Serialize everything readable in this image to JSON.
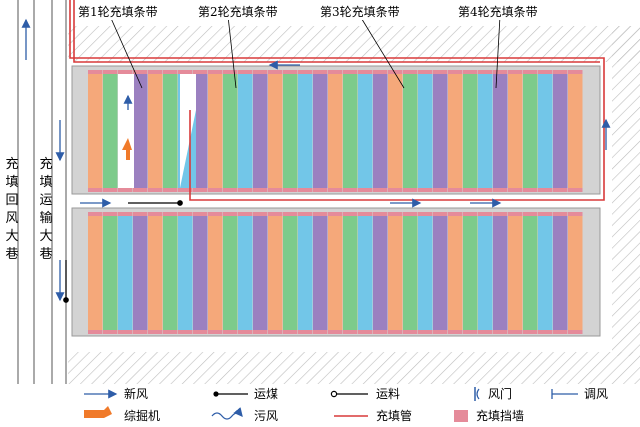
{
  "band_labels": [
    "第1轮充填条带",
    "第2轮充填条带",
    "第3轮充填条带",
    "第4轮充填条带"
  ],
  "roadway_labels": {
    "return_air": [
      "充",
      "填",
      "回",
      "风",
      "大",
      "巷"
    ],
    "transport": [
      "充",
      "填",
      "运",
      "输",
      "大",
      "巷"
    ]
  },
  "legend": {
    "fresh_air": "新风",
    "coal_transport": "运煤",
    "material_transport": "运料",
    "air_door": "风门",
    "air_regulator": "调风",
    "roadheader": "综掘机",
    "foul_air": "污风",
    "backfill_pipe": "充填管",
    "backfill_wall": "充填挡墙"
  },
  "strip_colors": {
    "orange": "#F5A87A",
    "green": "#7DCB8B",
    "blue": "#72C6E8",
    "purple": "#9B80C0",
    "wall": "#E58B9A",
    "panel": "#D3D3D3",
    "pipe": "#D93A3A",
    "arrow": "#2E5DA8",
    "machine": "#F07A2A"
  }
}
